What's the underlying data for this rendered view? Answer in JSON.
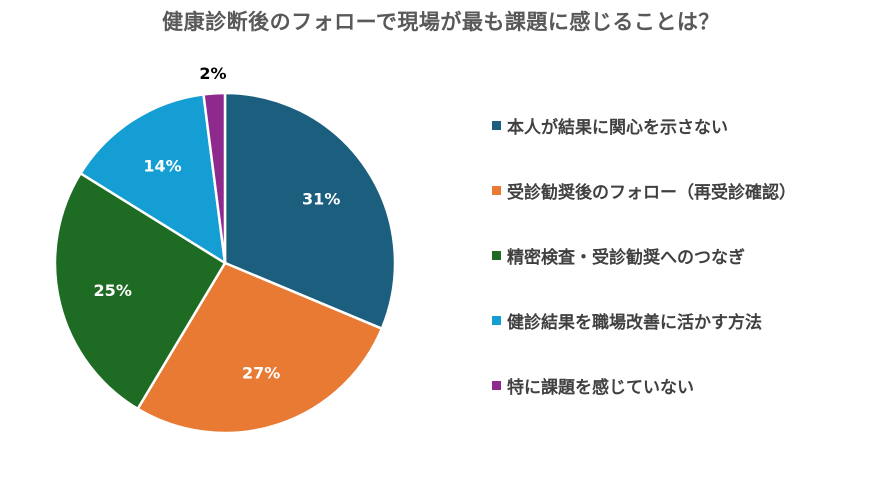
{
  "title": "健康診断後のフォローで現場が最も課題に感じることは？",
  "chart_data": {
    "type": "pie",
    "title": "健康診断後のフォローで現場が最も課題に感じることは？",
    "legend_position": "right",
    "slices": [
      {
        "label": "本人が結果に関心を示さない",
        "value": 31,
        "display": "31%",
        "color": "#1B5E7E"
      },
      {
        "label": "受診勧奨後のフォロー（再受診確認）",
        "value": 27,
        "display": "27%",
        "color": "#E87A34"
      },
      {
        "label": "精密検査・受診勧奨へのつなぎ",
        "value": 25,
        "display": "25%",
        "color": "#1E6B24"
      },
      {
        "label": "健診結果を職場改善に活かす方法",
        "value": 14,
        "display": "14%",
        "color": "#149ED4"
      },
      {
        "label": "特に課題を感じていない",
        "value": 2,
        "display": "2%",
        "color": "#8E2A8E"
      }
    ]
  }
}
